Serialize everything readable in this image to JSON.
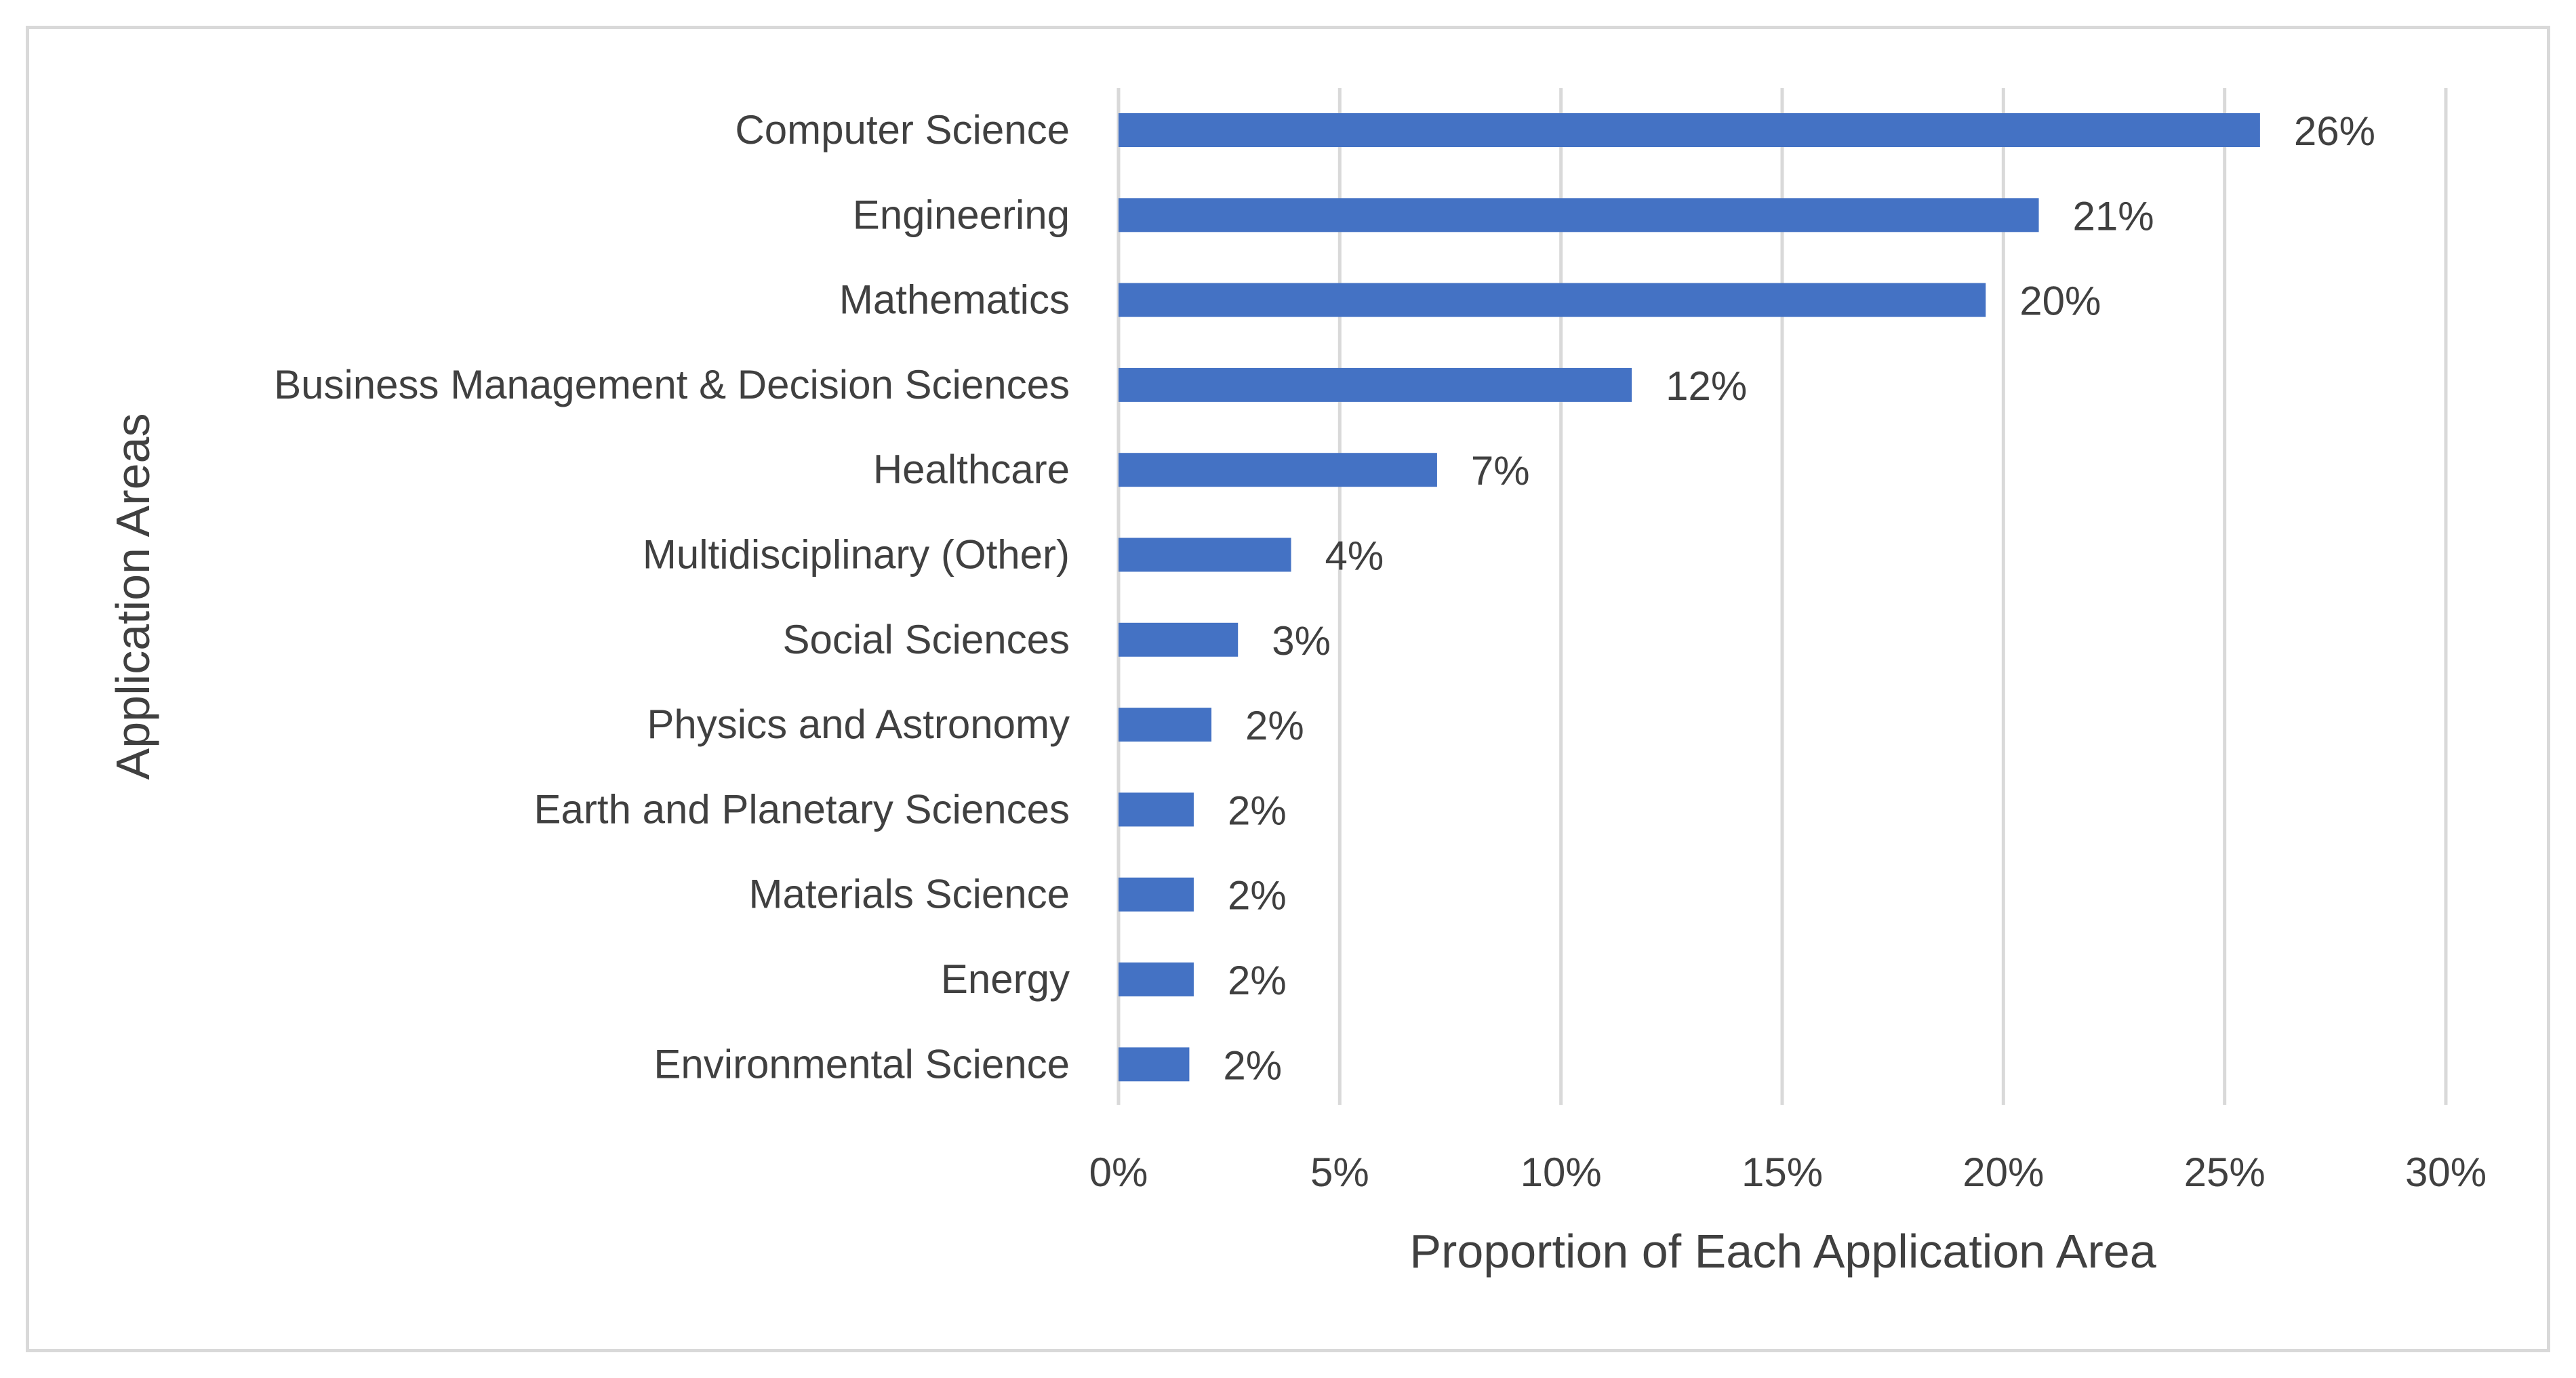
{
  "chart_data": {
    "type": "bar",
    "orientation": "horizontal",
    "title": "",
    "xlabel": "Proportion of Each Application Area",
    "ylabel": "Application Areas",
    "xlim": [
      0,
      30
    ],
    "x_ticks": [
      "0%",
      "5%",
      "10%",
      "15%",
      "20%",
      "25%",
      "30%"
    ],
    "grid": true,
    "legend": "none",
    "bar_color": "#4472c4",
    "categories": [
      "Computer Science",
      "Engineering",
      "Mathematics",
      "Business Management & Decision Sciences",
      "Healthcare",
      "Multidisciplinary (Other)",
      "Social Sciences",
      "Physics and Astronomy",
      "Earth and Planetary Sciences",
      "Materials Science",
      "Energy",
      "Environmental Science"
    ],
    "values": [
      25.8,
      20.8,
      19.6,
      11.6,
      7.2,
      3.9,
      2.7,
      2.1,
      1.7,
      1.7,
      1.7,
      1.6
    ],
    "data_labels": [
      "26%",
      "21%",
      "20%",
      "12%",
      "7%",
      "4%",
      "3%",
      "2%",
      "2%",
      "2%",
      "2%",
      "2%"
    ]
  }
}
